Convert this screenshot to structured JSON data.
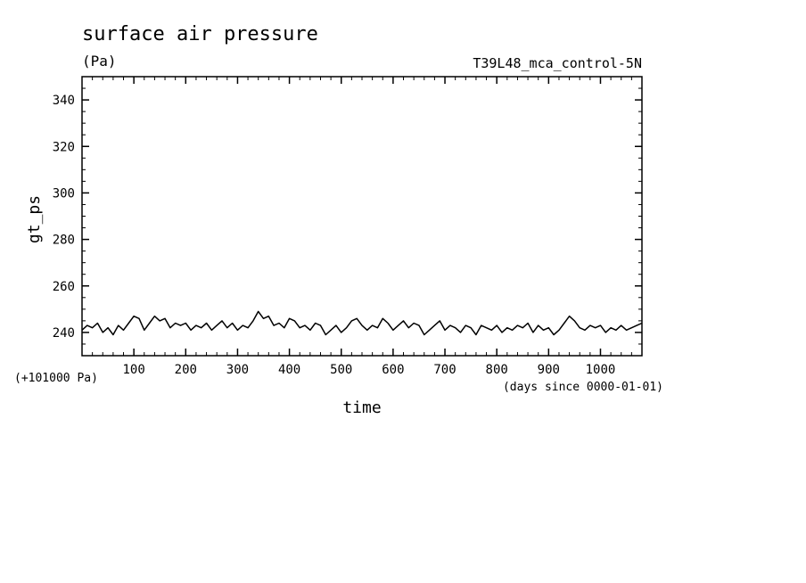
{
  "chart_data": {
    "type": "line",
    "title": "surface air pressure",
    "units": "(Pa)",
    "run_label": "T39L48_mca_control-5N",
    "ylabel": "gt_ps",
    "xlabel": "time",
    "y_offset_label": "(+101000 Pa)",
    "x_unit_label": "(days since 0000-01-01)",
    "xlim": [
      0,
      1080
    ],
    "ylim": [
      230,
      350
    ],
    "x_ticks": [
      100,
      200,
      300,
      400,
      500,
      600,
      700,
      800,
      900,
      1000
    ],
    "y_ticks": [
      240,
      260,
      280,
      300,
      320,
      340
    ],
    "grid": false,
    "series": [
      {
        "x": [
          0,
          10,
          20,
          30,
          40,
          50,
          60,
          70,
          80,
          90,
          100,
          110,
          120,
          130,
          140,
          150,
          160,
          170,
          180,
          190,
          200,
          210,
          220,
          230,
          240,
          250,
          260,
          270,
          280,
          290,
          300,
          310,
          320,
          330,
          340,
          350,
          360,
          370,
          380,
          390,
          400,
          410,
          420,
          430,
          440,
          450,
          460,
          470,
          480,
          490,
          500,
          510,
          520,
          530,
          540,
          550,
          560,
          570,
          580,
          590,
          600,
          610,
          620,
          630,
          640,
          650,
          660,
          670,
          680,
          690,
          700,
          710,
          720,
          730,
          740,
          750,
          760,
          770,
          780,
          790,
          800,
          810,
          820,
          830,
          840,
          850,
          860,
          870,
          880,
          890,
          900,
          910,
          920,
          930,
          940,
          950,
          960,
          970,
          980,
          990,
          1000,
          1010,
          1020,
          1030,
          1040,
          1050,
          1060,
          1070,
          1080
        ],
        "y": [
          241,
          243,
          242,
          244,
          240,
          242,
          239,
          243,
          241,
          244,
          247,
          246,
          241,
          244,
          247,
          245,
          246,
          242,
          244,
          243,
          244,
          241,
          243,
          242,
          244,
          241,
          243,
          245,
          242,
          244,
          241,
          243,
          242,
          245,
          249,
          246,
          247,
          243,
          244,
          242,
          246,
          245,
          242,
          243,
          241,
          244,
          243,
          239,
          241,
          243,
          240,
          242,
          245,
          246,
          243,
          241,
          243,
          242,
          246,
          244,
          241,
          243,
          245,
          242,
          244,
          243,
          239,
          241,
          243,
          245,
          241,
          243,
          242,
          240,
          243,
          242,
          239,
          243,
          242,
          241,
          243,
          240,
          242,
          241,
          243,
          242,
          244,
          240,
          243,
          241,
          242,
          239,
          241,
          244,
          247,
          245,
          242,
          241,
          243,
          242,
          243,
          240,
          242,
          241,
          243,
          241,
          242,
          243,
          244
        ]
      }
    ]
  }
}
